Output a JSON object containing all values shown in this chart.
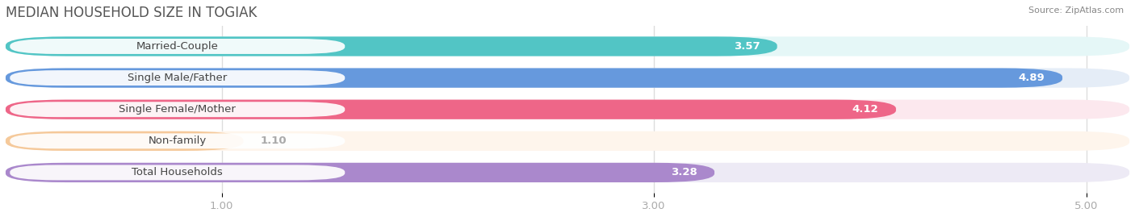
{
  "title": "MEDIAN HOUSEHOLD SIZE IN TOGIAK",
  "source": "Source: ZipAtlas.com",
  "categories": [
    "Married-Couple",
    "Single Male/Father",
    "Single Female/Mother",
    "Non-family",
    "Total Households"
  ],
  "values": [
    3.57,
    4.89,
    4.12,
    1.1,
    3.28
  ],
  "bar_colors": [
    "#52c5c5",
    "#6699dd",
    "#ee6688",
    "#f5c99a",
    "#aa88cc"
  ],
  "bg_colors": [
    "#e5f7f7",
    "#e5edf7",
    "#fce8ee",
    "#fef5ec",
    "#edeaf5"
  ],
  "label_text_colors": [
    "#555555",
    "#555555",
    "#555555",
    "#555555",
    "#555555"
  ],
  "value_colors_inside": [
    "white",
    "white",
    "white",
    "white",
    "white"
  ],
  "xlim_min": 0.0,
  "xlim_max": 5.2,
  "xticks": [
    1.0,
    3.0,
    5.0
  ],
  "title_fontsize": 12,
  "label_fontsize": 9.5,
  "value_fontsize": 9.5,
  "bar_height": 0.62,
  "background_color": "#ffffff",
  "grid_color": "#dddddd",
  "tick_color": "#aaaaaa"
}
